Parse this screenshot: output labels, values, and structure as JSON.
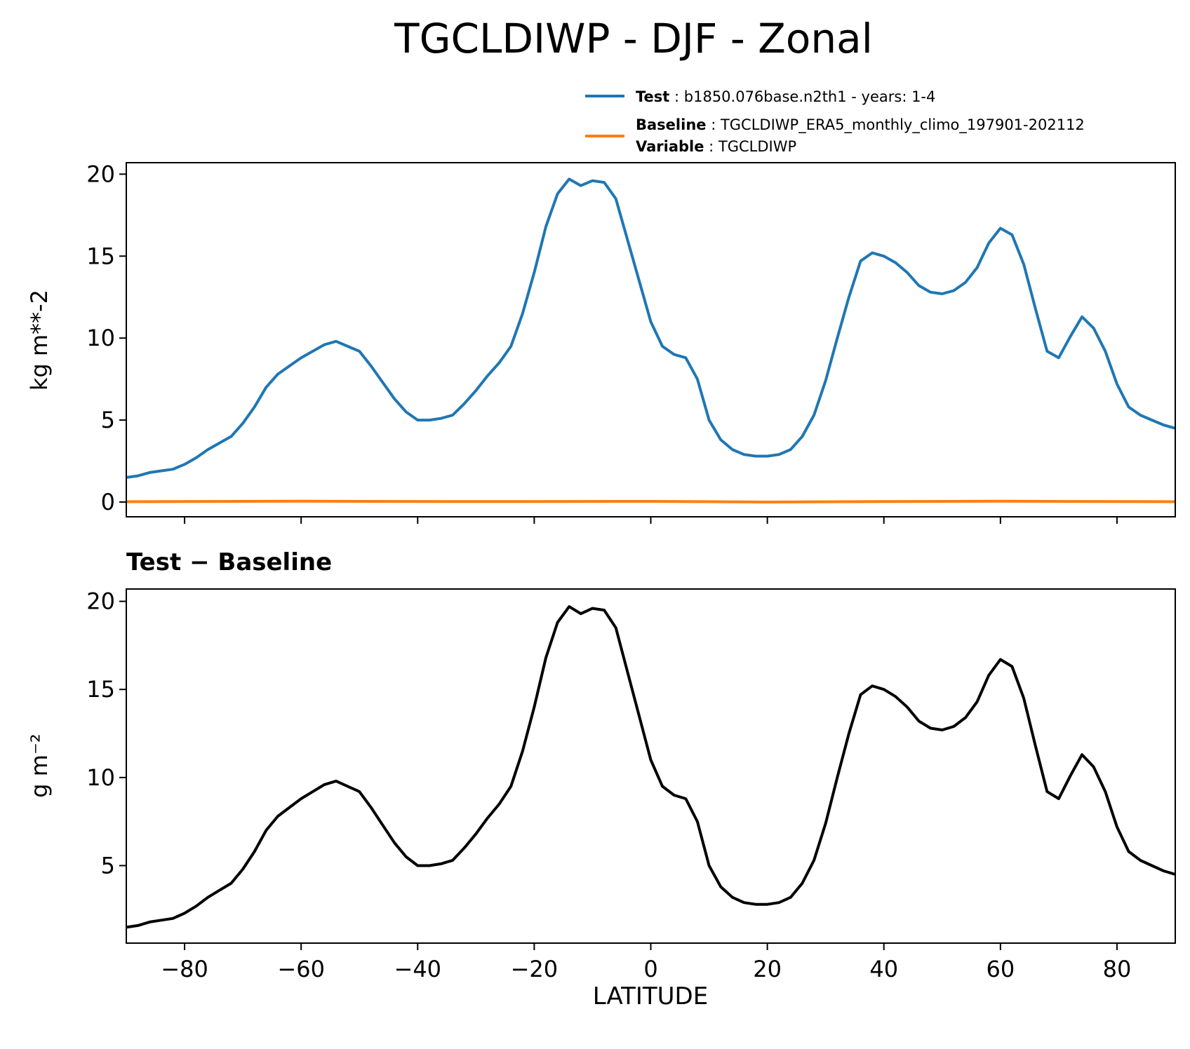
{
  "figure": {
    "title": "TGCLDIWP - DJF - Zonal",
    "legend": {
      "test": {
        "key": "Test",
        "text": "b1850.076base.n2th1 - years: 1-4",
        "color": "#1f77b4"
      },
      "baseline": {
        "key": "Baseline",
        "text": "TGCLDIWP_ERA5_monthly_climo_197901-202112",
        "color": "#ff7f0e"
      },
      "variable": {
        "key": "Variable",
        "text": "TGCLDIWP"
      }
    },
    "diff_title_left": "Test",
    "diff_title_sep": " − ",
    "diff_title_right": "Baseline",
    "diff_color": "#000000"
  },
  "chart_data": [
    {
      "type": "line",
      "panel": "top",
      "ylabel": "kg m**-2",
      "xlim": [
        -90,
        90
      ],
      "ylim": [
        -0.9,
        20.7
      ],
      "yticks": [
        0,
        5,
        10,
        15,
        20
      ],
      "xticks": [
        -80,
        -60,
        -40,
        -20,
        0,
        20,
        40,
        60,
        80
      ],
      "xtick_labels_shown": false,
      "grid": false,
      "legend_placement": "above-right",
      "series": [
        {
          "name": "Test",
          "color": "#1f77b4",
          "x": [
            -90,
            -88,
            -86,
            -84,
            -82,
            -80,
            -78,
            -76,
            -74,
            -72,
            -70,
            -68,
            -66,
            -64,
            -62,
            -60,
            -58,
            -56,
            -54,
            -52,
            -50,
            -48,
            -46,
            -44,
            -42,
            -40,
            -38,
            -36,
            -34,
            -32,
            -30,
            -28,
            -26,
            -24,
            -22,
            -20,
            -18,
            -16,
            -14,
            -12,
            -10,
            -8,
            -6,
            -4,
            -2,
            0,
            2,
            4,
            6,
            8,
            10,
            12,
            14,
            16,
            18,
            20,
            22,
            24,
            26,
            28,
            30,
            32,
            34,
            36,
            38,
            40,
            42,
            44,
            46,
            48,
            50,
            52,
            54,
            56,
            58,
            60,
            62,
            64,
            66,
            68,
            70,
            72,
            74,
            76,
            78,
            80,
            82,
            84,
            86,
            88,
            90
          ],
          "y": [
            1.5,
            1.6,
            1.8,
            1.9,
            2.0,
            2.3,
            2.7,
            3.2,
            3.6,
            4.0,
            4.8,
            5.8,
            7.0,
            7.8,
            8.3,
            8.8,
            9.2,
            9.6,
            9.8,
            9.5,
            9.2,
            8.3,
            7.3,
            6.3,
            5.5,
            5.0,
            5.0,
            5.1,
            5.3,
            6.0,
            6.8,
            7.7,
            8.5,
            9.5,
            11.5,
            14.0,
            16.8,
            18.8,
            19.7,
            19.3,
            19.6,
            19.5,
            18.5,
            16.0,
            13.5,
            11.0,
            9.5,
            9.0,
            8.8,
            7.5,
            5.0,
            3.8,
            3.2,
            2.9,
            2.8,
            2.8,
            2.9,
            3.2,
            4.0,
            5.3,
            7.4,
            10.0,
            12.5,
            14.7,
            15.2,
            15.0,
            14.6,
            14.0,
            13.2,
            12.8,
            12.7,
            12.9,
            13.4,
            14.3,
            15.8,
            16.7,
            16.3,
            14.5,
            11.8,
            9.2,
            8.8,
            10.1,
            11.3,
            10.6,
            9.2,
            7.2,
            5.8,
            5.3,
            5.0,
            4.7,
            4.5
          ]
        },
        {
          "name": "Baseline",
          "color": "#ff7f0e",
          "x": [
            -90,
            -60,
            -30,
            0,
            20,
            40,
            60,
            90
          ],
          "y": [
            0.02,
            0.05,
            0.03,
            0.04,
            0.0,
            0.03,
            0.05,
            0.02
          ]
        }
      ]
    },
    {
      "type": "line",
      "panel": "bottom",
      "title": "Test − Baseline",
      "xlabel": "LATITUDE",
      "ylabel": "g m⁻²",
      "xlim": [
        -90,
        90
      ],
      "ylim": [
        0.6,
        20.7
      ],
      "yticks": [
        5,
        10,
        15,
        20
      ],
      "xticks": [
        -80,
        -60,
        -40,
        -20,
        0,
        20,
        40,
        60,
        80
      ],
      "xtick_labels": [
        "−80",
        "−60",
        "−40",
        "−20",
        "0",
        "20",
        "40",
        "60",
        "80"
      ],
      "grid": false,
      "series": [
        {
          "color": "#000000",
          "x": [
            -90,
            -88,
            -86,
            -84,
            -82,
            -80,
            -78,
            -76,
            -74,
            -72,
            -70,
            -68,
            -66,
            -64,
            -62,
            -60,
            -58,
            -56,
            -54,
            -52,
            -50,
            -48,
            -46,
            -44,
            -42,
            -40,
            -38,
            -36,
            -34,
            -32,
            -30,
            -28,
            -26,
            -24,
            -22,
            -20,
            -18,
            -16,
            -14,
            -12,
            -10,
            -8,
            -6,
            -4,
            -2,
            0,
            2,
            4,
            6,
            8,
            10,
            12,
            14,
            16,
            18,
            20,
            22,
            24,
            26,
            28,
            30,
            32,
            34,
            36,
            38,
            40,
            42,
            44,
            46,
            48,
            50,
            52,
            54,
            56,
            58,
            60,
            62,
            64,
            66,
            68,
            70,
            72,
            74,
            76,
            78,
            80,
            82,
            84,
            86,
            88,
            90
          ],
          "y": [
            1.5,
            1.6,
            1.8,
            1.9,
            2.0,
            2.3,
            2.7,
            3.2,
            3.6,
            4.0,
            4.8,
            5.8,
            7.0,
            7.8,
            8.3,
            8.8,
            9.2,
            9.6,
            9.8,
            9.5,
            9.2,
            8.3,
            7.3,
            6.3,
            5.5,
            5.0,
            5.0,
            5.1,
            5.3,
            6.0,
            6.8,
            7.7,
            8.5,
            9.5,
            11.5,
            14.0,
            16.8,
            18.8,
            19.7,
            19.3,
            19.6,
            19.5,
            18.5,
            16.0,
            13.5,
            11.0,
            9.5,
            9.0,
            8.8,
            7.5,
            5.0,
            3.8,
            3.2,
            2.9,
            2.8,
            2.8,
            2.9,
            3.2,
            4.0,
            5.3,
            7.4,
            10.0,
            12.5,
            14.7,
            15.2,
            15.0,
            14.6,
            14.0,
            13.2,
            12.8,
            12.7,
            12.9,
            13.4,
            14.3,
            15.8,
            16.7,
            16.3,
            14.5,
            11.8,
            9.2,
            8.8,
            10.1,
            11.3,
            10.6,
            9.2,
            7.2,
            5.8,
            5.3,
            5.0,
            4.7,
            4.5
          ]
        }
      ]
    }
  ]
}
